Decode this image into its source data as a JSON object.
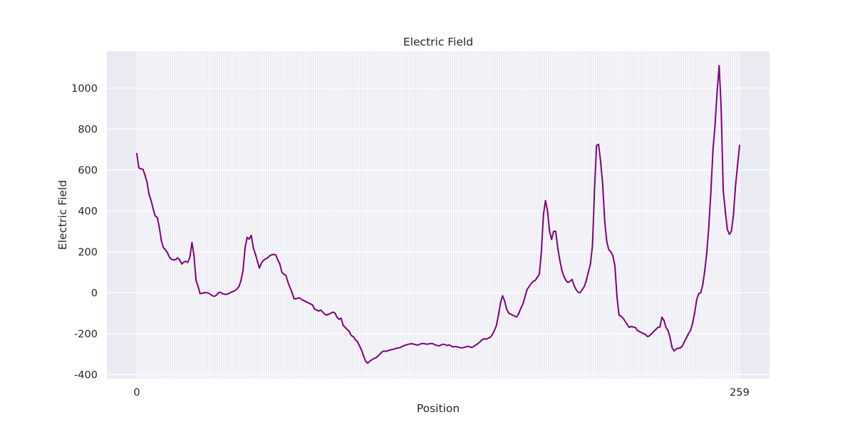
{
  "chart_data": {
    "type": "line",
    "title": "Electric Field",
    "xlabel": "Position",
    "ylabel": "Electric Field",
    "x_start": 0,
    "x_end": 259,
    "ylim": [
      -420,
      1180
    ],
    "yticks": [
      -400,
      -200,
      0,
      200,
      400,
      600,
      800,
      1000
    ],
    "xtick_labels_readable": [
      "0",
      "259"
    ],
    "grid": true,
    "legend": "none",
    "colors": {
      "line": "#800080",
      "background": "#eaeaf2",
      "grid": "#ffffff"
    },
    "series": [
      {
        "values": [
          680,
          610,
          605,
          603,
          575,
          540,
          480,
          450,
          410,
          375,
          368,
          320,
          255,
          220,
          210,
          195,
          173,
          163,
          160,
          162,
          170,
          160,
          140,
          150,
          153,
          148,
          175,
          245,
          180,
          60,
          30,
          -5,
          -3,
          0,
          0,
          -2,
          -8,
          -15,
          -18,
          -12,
          0,
          2,
          -5,
          -8,
          -8,
          -5,
          2,
          5,
          10,
          18,
          30,
          60,
          110,
          220,
          270,
          262,
          280,
          220,
          190,
          155,
          120,
          145,
          158,
          165,
          170,
          180,
          185,
          187,
          185,
          160,
          140,
          100,
          90,
          85,
          50,
          25,
          0,
          -30,
          -30,
          -25,
          -28,
          -35,
          -40,
          -45,
          -50,
          -55,
          -60,
          -80,
          -85,
          -90,
          -85,
          -95,
          -105,
          -110,
          -105,
          -100,
          -95,
          -100,
          -120,
          -130,
          -125,
          -160,
          -170,
          -180,
          -190,
          -210,
          -215,
          -230,
          -240,
          -260,
          -280,
          -310,
          -335,
          -345,
          -335,
          -328,
          -322,
          -318,
          -310,
          -300,
          -290,
          -285,
          -287,
          -283,
          -280,
          -278,
          -275,
          -272,
          -270,
          -268,
          -262,
          -258,
          -255,
          -252,
          -250,
          -250,
          -253,
          -256,
          -255,
          -250,
          -248,
          -250,
          -252,
          -250,
          -248,
          -250,
          -255,
          -258,
          -260,
          -255,
          -252,
          -255,
          -258,
          -255,
          -262,
          -265,
          -263,
          -265,
          -268,
          -270,
          -268,
          -265,
          -262,
          -265,
          -268,
          -262,
          -255,
          -248,
          -240,
          -230,
          -225,
          -228,
          -222,
          -218,
          -205,
          -185,
          -160,
          -110,
          -50,
          -15,
          -40,
          -80,
          -100,
          -105,
          -110,
          -115,
          -118,
          -100,
          -75,
          -55,
          -20,
          15,
          30,
          45,
          55,
          60,
          75,
          90,
          200,
          380,
          450,
          400,
          300,
          260,
          300,
          300,
          220,
          160,
          110,
          80,
          60,
          50,
          55,
          65,
          35,
          15,
          2,
          0,
          15,
          30,
          60,
          100,
          140,
          230,
          500,
          720,
          725,
          640,
          530,
          350,
          250,
          210,
          200,
          180,
          130,
          -20,
          -110,
          -115,
          -125,
          -140,
          -155,
          -170,
          -165,
          -168,
          -170,
          -185,
          -190,
          -195,
          -200,
          -205,
          -215,
          -210,
          -200,
          -190,
          -180,
          -170,
          -168,
          -120,
          -135,
          -170,
          -185,
          -220,
          -270,
          -285,
          -275,
          -272,
          -270,
          -260,
          -240,
          -220,
          -200,
          -185,
          -150,
          -100,
          -35,
          -5,
          0,
          40,
          110,
          200,
          330,
          500,
          700,
          820,
          980,
          1110,
          900,
          500,
          400,
          310,
          285,
          300,
          380,
          520,
          620,
          720
        ]
      }
    ]
  }
}
